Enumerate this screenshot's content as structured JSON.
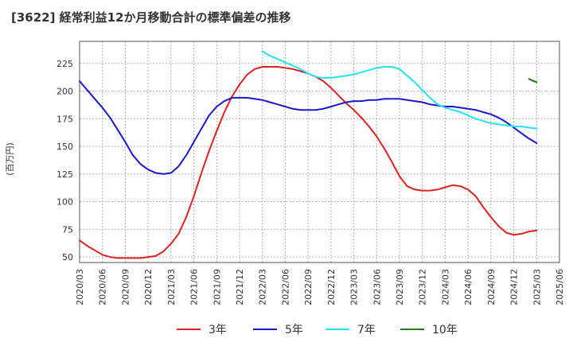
{
  "chart_data": {
    "type": "line",
    "title": "[3622]  経常利益12か月移動合計の標準偏差の推移",
    "ylabel": "(百万円)",
    "xlabel": "",
    "ylim": [
      45,
      245
    ],
    "yticks": [
      50,
      75,
      100,
      125,
      150,
      175,
      200,
      225
    ],
    "xticks": [
      "2020/03",
      "2020/06",
      "2020/09",
      "2020/12",
      "2021/03",
      "2021/06",
      "2021/09",
      "2021/12",
      "2022/03",
      "2022/06",
      "2022/09",
      "2022/12",
      "2023/03",
      "2023/06",
      "2023/09",
      "2023/12",
      "2024/03",
      "2024/06",
      "2024/09",
      "2024/12",
      "2025/03",
      "2025/06"
    ],
    "grid": true,
    "legend_position": "bottom",
    "series": [
      {
        "name": "3年",
        "color": "#dd2222",
        "x": [
          "2020/03",
          "2020/04",
          "2020/05",
          "2020/06",
          "2020/07",
          "2020/08",
          "2020/09",
          "2020/10",
          "2020/11",
          "2020/12",
          "2021/01",
          "2021/02",
          "2021/03",
          "2021/04",
          "2021/05",
          "2021/06",
          "2021/07",
          "2021/08",
          "2021/09",
          "2021/10",
          "2021/11",
          "2021/12",
          "2022/01",
          "2022/02",
          "2022/03",
          "2022/04",
          "2022/05",
          "2022/06",
          "2022/07",
          "2022/08",
          "2022/09",
          "2022/10",
          "2022/11",
          "2022/12",
          "2023/01",
          "2023/02",
          "2023/03",
          "2023/04",
          "2023/05",
          "2023/06",
          "2023/07",
          "2023/08",
          "2023/09",
          "2023/10",
          "2023/11",
          "2023/12",
          "2024/01",
          "2024/02",
          "2024/03",
          "2024/04",
          "2024/05",
          "2024/06",
          "2024/07",
          "2024/08",
          "2024/09",
          "2024/10",
          "2024/11",
          "2024/12",
          "2025/01",
          "2025/02",
          "2025/03"
        ],
        "values": [
          65,
          60,
          56,
          52,
          50,
          49,
          49,
          49,
          49,
          50,
          51,
          55,
          62,
          71,
          86,
          105,
          126,
          146,
          164,
          181,
          195,
          206,
          215,
          220,
          222,
          222,
          222,
          221,
          220,
          218,
          216,
          213,
          209,
          203,
          196,
          189,
          183,
          176,
          168,
          159,
          148,
          136,
          123,
          114,
          111,
          110,
          110,
          111,
          113,
          115,
          114,
          111,
          105,
          95,
          86,
          78,
          72,
          70,
          71,
          73,
          74
        ]
      },
      {
        "name": "5年",
        "color": "#1a1acc",
        "x": [
          "2020/03",
          "2020/04",
          "2020/05",
          "2020/06",
          "2020/07",
          "2020/08",
          "2020/09",
          "2020/10",
          "2020/11",
          "2020/12",
          "2021/01",
          "2021/02",
          "2021/03",
          "2021/04",
          "2021/05",
          "2021/06",
          "2021/07",
          "2021/08",
          "2021/09",
          "2021/10",
          "2021/11",
          "2021/12",
          "2022/01",
          "2022/02",
          "2022/03",
          "2022/04",
          "2022/05",
          "2022/06",
          "2022/07",
          "2022/08",
          "2022/09",
          "2022/10",
          "2022/11",
          "2022/12",
          "2023/01",
          "2023/02",
          "2023/03",
          "2023/04",
          "2023/05",
          "2023/06",
          "2023/07",
          "2023/08",
          "2023/09",
          "2023/10",
          "2023/11",
          "2023/12",
          "2024/01",
          "2024/02",
          "2024/03",
          "2024/04",
          "2024/05",
          "2024/06",
          "2024/07",
          "2024/08",
          "2024/09",
          "2024/10",
          "2024/11",
          "2024/12",
          "2025/01",
          "2025/02",
          "2025/03"
        ],
        "values": [
          209,
          201,
          193,
          185,
          176,
          165,
          154,
          142,
          134,
          129,
          126,
          125,
          126,
          132,
          142,
          154,
          166,
          178,
          186,
          191,
          194,
          194,
          194,
          193,
          192,
          190,
          188,
          186,
          184,
          183,
          183,
          183,
          184,
          186,
          188,
          190,
          191,
          191,
          192,
          192,
          193,
          193,
          193,
          192,
          191,
          190,
          188,
          187,
          186,
          186,
          185,
          184,
          183,
          181,
          179,
          176,
          172,
          167,
          162,
          157,
          153
        ]
      },
      {
        "name": "7年",
        "color": "#22e5f0",
        "x": [
          "2022/03",
          "2022/04",
          "2022/05",
          "2022/06",
          "2022/07",
          "2022/08",
          "2022/09",
          "2022/10",
          "2022/11",
          "2022/12",
          "2023/01",
          "2023/02",
          "2023/03",
          "2023/04",
          "2023/05",
          "2023/06",
          "2023/07",
          "2023/08",
          "2023/09",
          "2023/10",
          "2023/11",
          "2023/12",
          "2024/01",
          "2024/02",
          "2024/03",
          "2024/04",
          "2024/05",
          "2024/06",
          "2024/07",
          "2024/08",
          "2024/09",
          "2024/10",
          "2024/11",
          "2024/12",
          "2025/01",
          "2025/02",
          "2025/03"
        ],
        "values": [
          236,
          232,
          229,
          226,
          223,
          220,
          216,
          213,
          212,
          212,
          213,
          214,
          215,
          217,
          219,
          221,
          222,
          222,
          220,
          214,
          208,
          201,
          194,
          188,
          185,
          183,
          181,
          178,
          175,
          173,
          171,
          170,
          169,
          168,
          168,
          167,
          166
        ]
      },
      {
        "name": "10年",
        "color": "#227722",
        "x": [
          "2025/02",
          "2025/03"
        ],
        "values": [
          211,
          208
        ]
      }
    ]
  }
}
